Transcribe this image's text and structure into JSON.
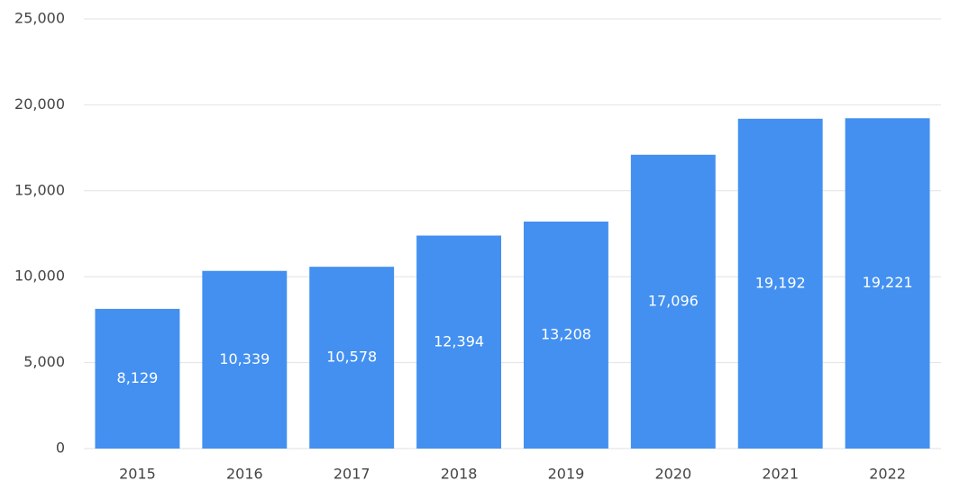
{
  "chart_data": {
    "type": "bar",
    "categories": [
      "2015",
      "2016",
      "2017",
      "2018",
      "2019",
      "2020",
      "2021",
      "2022"
    ],
    "values": [
      8129,
      10339,
      10578,
      12394,
      13208,
      17096,
      19192,
      19221
    ],
    "value_labels": [
      "8,129",
      "10,339",
      "10,578",
      "12,394",
      "13,208",
      "17,096",
      "19,192",
      "19,221"
    ],
    "color": "#4390f0",
    "ylim": [
      0,
      25000
    ],
    "yticks": [
      {
        "value": 0,
        "label": "0"
      },
      {
        "value": 5000,
        "label": "5,000"
      },
      {
        "value": 10000,
        "label": "10,000"
      },
      {
        "value": 15000,
        "label": "15,000"
      },
      {
        "value": 20000,
        "label": "20,000"
      },
      {
        "value": 25000,
        "label": "25,000"
      }
    ],
    "grid": true
  }
}
